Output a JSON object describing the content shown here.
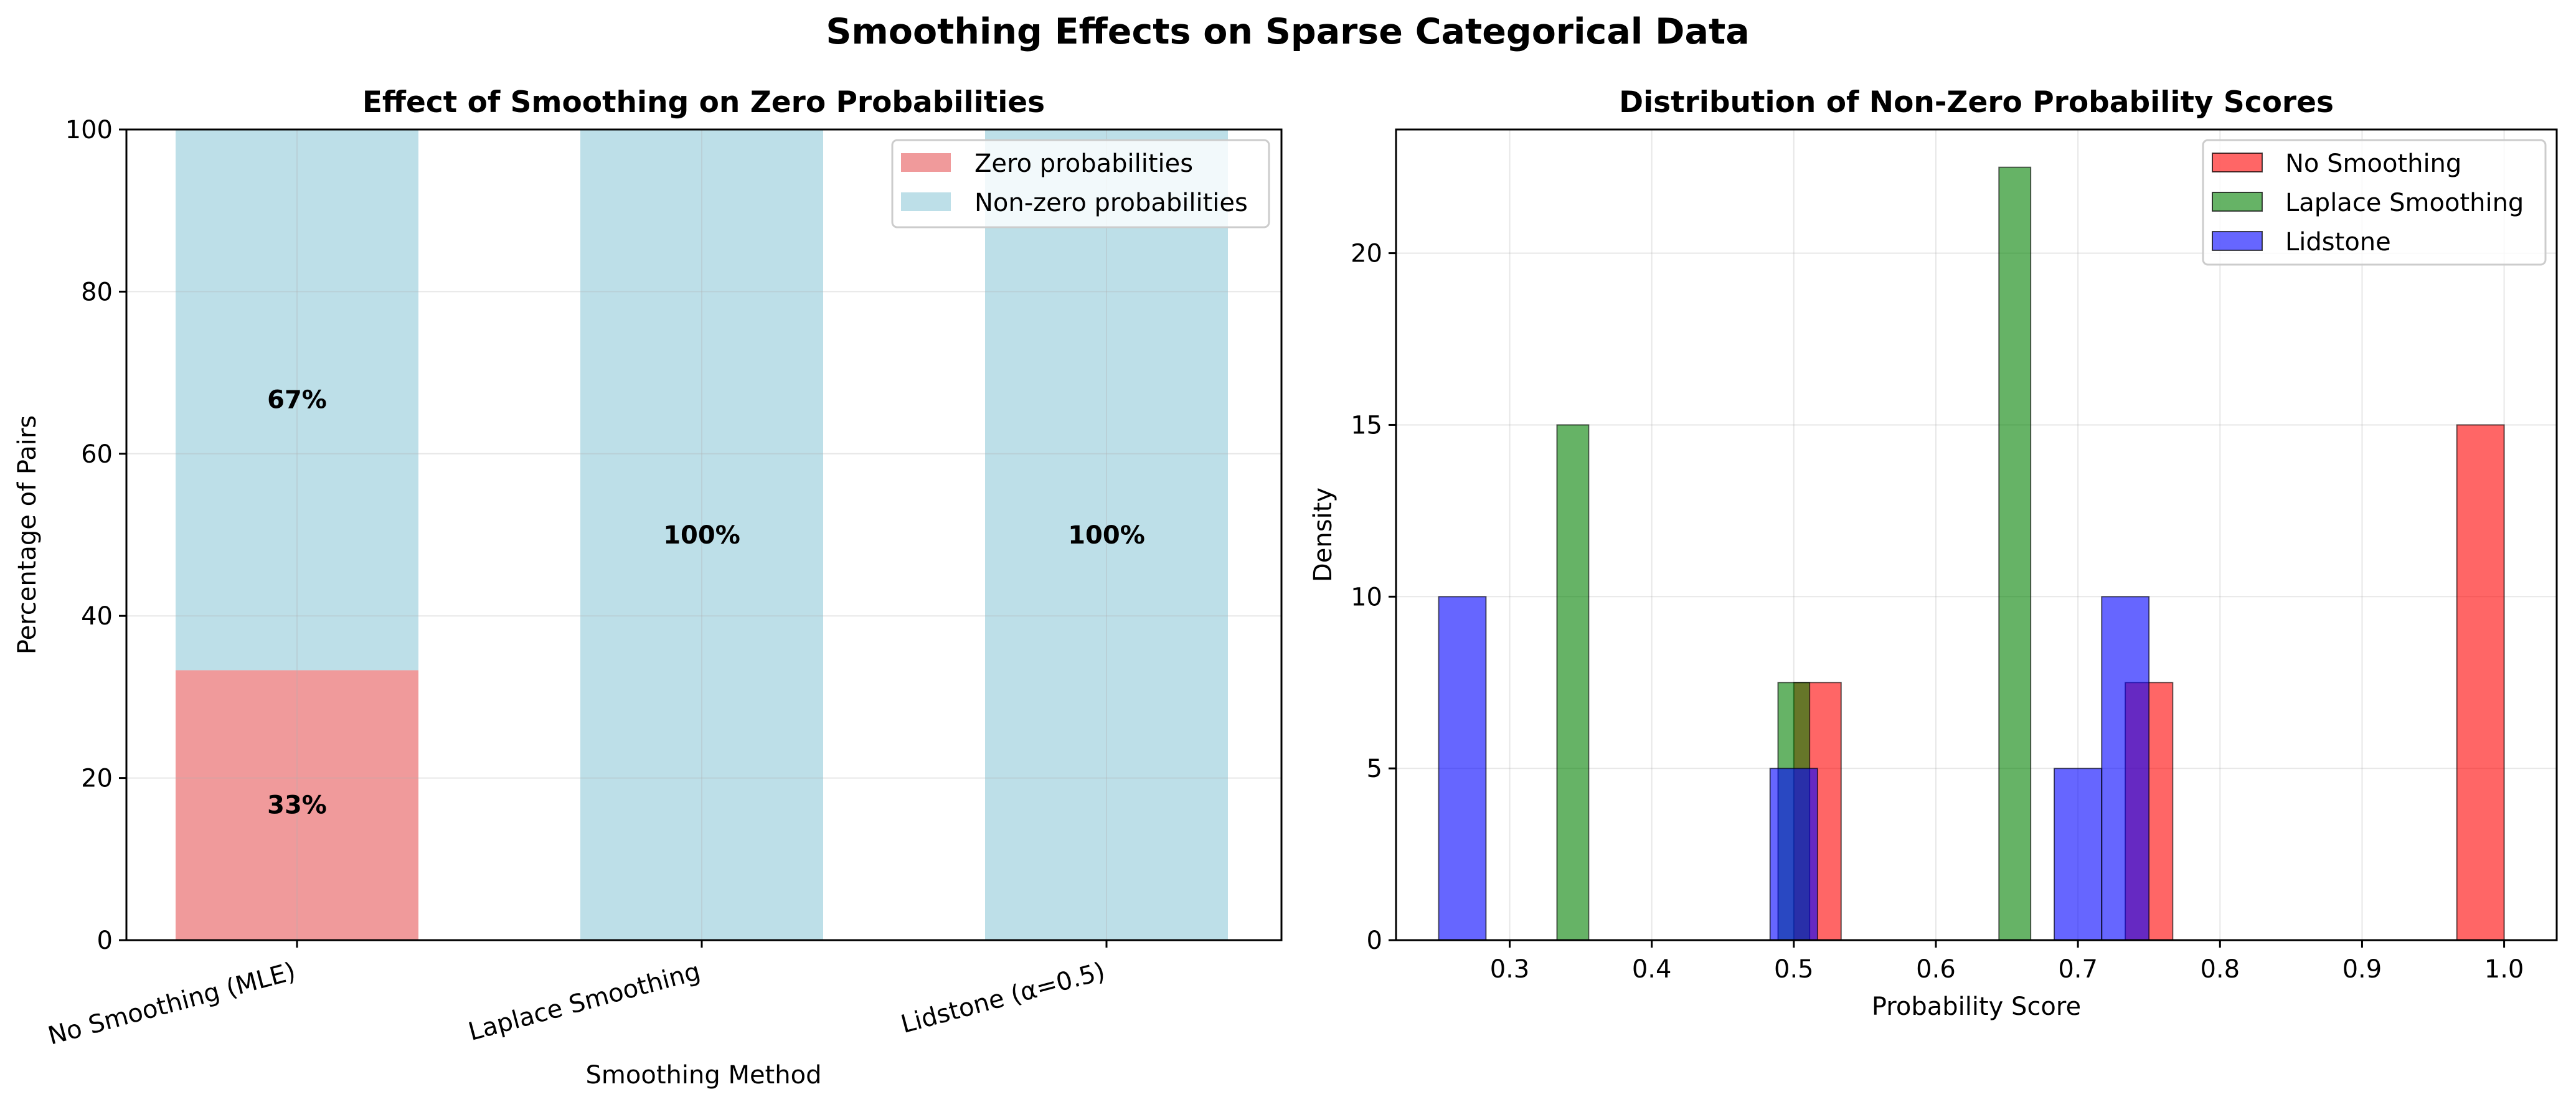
{
  "suptitle": "Smoothing Effects on Sparse Categorical Data",
  "colors": {
    "zero": "#f09a9b",
    "nonzero": "#bddfe8",
    "no_smoothing": "#ff0000",
    "laplace": "#008000",
    "lidstone": "#0000ff",
    "grid": "#b0b0b0"
  },
  "chart_data": [
    {
      "type": "bar",
      "stacked": true,
      "title": "Effect of Smoothing on Zero Probabilities",
      "xlabel": "Smoothing Method",
      "ylabel": "Percentage of Pairs",
      "ylim": [
        0,
        100
      ],
      "yticks": [
        "0",
        "20",
        "40",
        "60",
        "80",
        "100"
      ],
      "categories": [
        "No Smoothing (MLE)",
        "Laplace Smoothing",
        "Lidstone (α=0.5)"
      ],
      "series": [
        {
          "name": "Zero probabilities",
          "values": [
            33.3,
            0,
            0
          ]
        },
        {
          "name": "Non-zero probabilities",
          "values": [
            66.7,
            100,
            100
          ]
        }
      ],
      "data_labels": [
        {
          "category": 0,
          "y": 16.7,
          "text": "33%"
        },
        {
          "category": 0,
          "y": 66.7,
          "text": "67%"
        },
        {
          "category": 1,
          "y": 50,
          "text": "100%"
        },
        {
          "category": 2,
          "y": 50,
          "text": "100%"
        }
      ],
      "grid": true,
      "legend": "top-right"
    },
    {
      "type": "bar",
      "subtype": "histogram",
      "title": "Distribution of Non-Zero Probability Scores",
      "xlabel": "Probability Score",
      "ylabel": "Density",
      "xlim": [
        0.22,
        1.037
      ],
      "ylim": [
        0,
        23.6
      ],
      "xticks": [
        "0.3",
        "0.4",
        "0.5",
        "0.6",
        "0.7",
        "0.8",
        "0.9",
        "1.0"
      ],
      "yticks": [
        "0",
        "5",
        "10",
        "15",
        "20"
      ],
      "series": [
        {
          "name": "No Smoothing",
          "bins": [
            {
              "x0": 0.5,
              "x1": 0.5333,
              "value": 7.5
            },
            {
              "x0": 0.7333,
              "x1": 0.7667,
              "value": 7.5
            },
            {
              "x0": 0.9667,
              "x1": 1.0,
              "value": 15
            }
          ]
        },
        {
          "name": "Laplace Smoothing",
          "bins": [
            {
              "x0": 0.3333,
              "x1": 0.3556,
              "value": 15
            },
            {
              "x0": 0.4889,
              "x1": 0.5111,
              "value": 7.5
            },
            {
              "x0": 0.6444,
              "x1": 0.6667,
              "value": 22.5
            }
          ]
        },
        {
          "name": "Lidstone",
          "bins": [
            {
              "x0": 0.25,
              "x1": 0.2833,
              "value": 10
            },
            {
              "x0": 0.4833,
              "x1": 0.5167,
              "value": 5
            },
            {
              "x0": 0.6833,
              "x1": 0.7167,
              "value": 5
            },
            {
              "x0": 0.7167,
              "x1": 0.75,
              "value": 10
            }
          ]
        }
      ],
      "grid": true,
      "legend": "top-right"
    }
  ]
}
